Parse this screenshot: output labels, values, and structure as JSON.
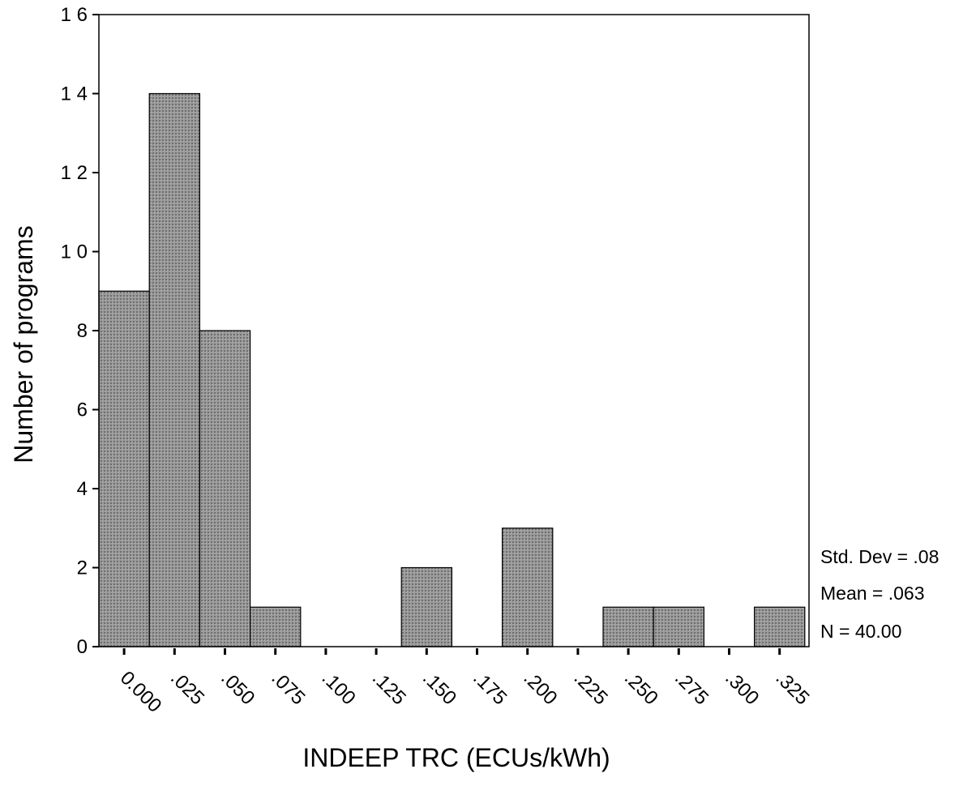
{
  "chart_data": {
    "type": "bar",
    "title": "",
    "xlabel": "INDEEP TRC (ECUs/kWh)",
    "ylabel": "Number of programs",
    "categories": [
      ".000",
      ".025",
      ".050",
      ".075",
      ".100",
      ".125",
      ".150",
      ".175",
      ".200",
      ".225",
      ".250",
      ".275",
      ".300",
      ".325"
    ],
    "x_tick_labels": [
      "0.000",
      ".025",
      ".050",
      ".075",
      ".100",
      ".125",
      ".150",
      ".175",
      ".200",
      ".225",
      ".250",
      ".275",
      ".300",
      ".325"
    ],
    "values": [
      9,
      14,
      8,
      1,
      0,
      0,
      2,
      0,
      3,
      0,
      1,
      1,
      0,
      1
    ],
    "ylim": [
      0,
      16
    ],
    "yticks": [
      0,
      2,
      4,
      6,
      8,
      10,
      12,
      14,
      16
    ],
    "y_tick_labels": [
      "0",
      "2",
      "4",
      "6",
      "8",
      "1 0",
      "1 2",
      "1 4",
      "1 6"
    ],
    "bar_color": "#8c8c8c",
    "grid": false,
    "legend": "none",
    "stats": {
      "std_dev": "Std. Dev = .08",
      "mean": "Mean = .063",
      "n": "N = 40.00"
    }
  }
}
